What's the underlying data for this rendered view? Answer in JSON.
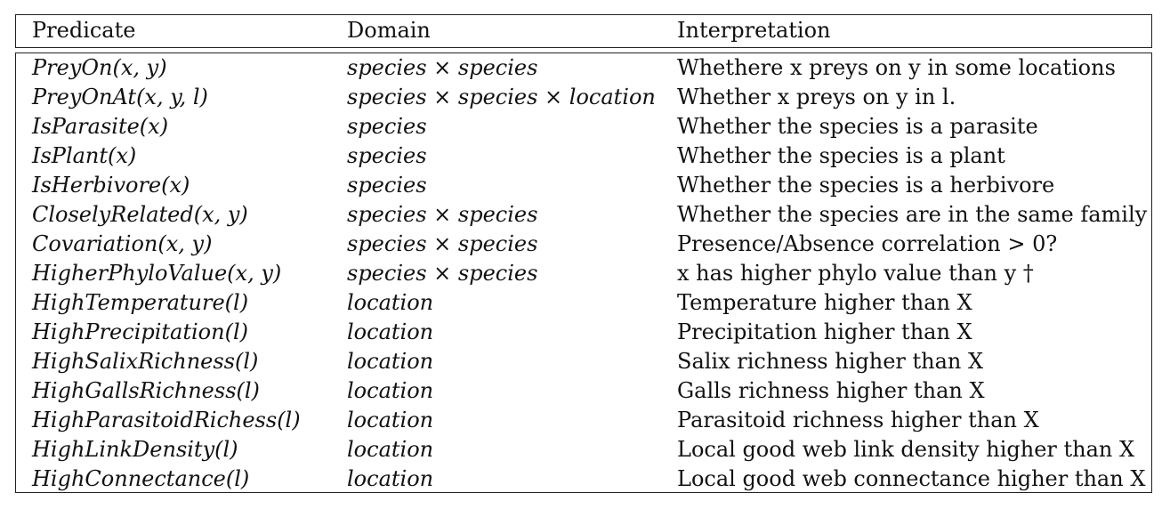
{
  "table": {
    "headers": {
      "predicate": "Predicate",
      "domain": "Domain",
      "interpretation": "Interpretation"
    },
    "rows": [
      {
        "predicate": "PreyOn(x, y)",
        "domain": "species × species",
        "interpretation": "Whethere x preys on y in some locations"
      },
      {
        "predicate": "PreyOnAt(x, y, l)",
        "domain": "species × species × location",
        "interpretation": "Whether x preys on y in l."
      },
      {
        "predicate": "IsParasite(x)",
        "domain": "species",
        "interpretation": "Whether the species is a parasite"
      },
      {
        "predicate": "IsPlant(x)",
        "domain": "species",
        "interpretation": "Whether the species is a plant"
      },
      {
        "predicate": "IsHerbivore(x)",
        "domain": "species",
        "interpretation": "Whether the species is a herbivore"
      },
      {
        "predicate": "CloselyRelated(x, y)",
        "domain": "species × species",
        "interpretation": "Whether the species are in the same family"
      },
      {
        "predicate": "Covariation(x, y)",
        "domain": "species × species",
        "interpretation": "Presence/Absence correlation > 0?"
      },
      {
        "predicate": "HigherPhyloValue(x, y)",
        "domain": "species × species",
        "interpretation": "x has higher phylo value than y †"
      },
      {
        "predicate": "HighTemperature(l)",
        "domain": "location",
        "interpretation": "Temperature higher than X"
      },
      {
        "predicate": "HighPrecipitation(l)",
        "domain": "location",
        "interpretation": "Precipitation higher than X"
      },
      {
        "predicate": "HighSalixRichness(l)",
        "domain": "location",
        "interpretation": "Salix richness higher than X"
      },
      {
        "predicate": "HighGallsRichness(l)",
        "domain": "location",
        "interpretation": "Galls richness higher than X"
      },
      {
        "predicate": "HighParasitoidRichess(l)",
        "domain": "location",
        "interpretation": "Parasitoid richness higher than X"
      },
      {
        "predicate": "HighLinkDensity(l)",
        "domain": "location",
        "interpretation": "Local good web link density higher than X"
      },
      {
        "predicate": "HighConnectance(l)",
        "domain": "location",
        "interpretation": "Local good web connectance higher than X"
      }
    ]
  }
}
